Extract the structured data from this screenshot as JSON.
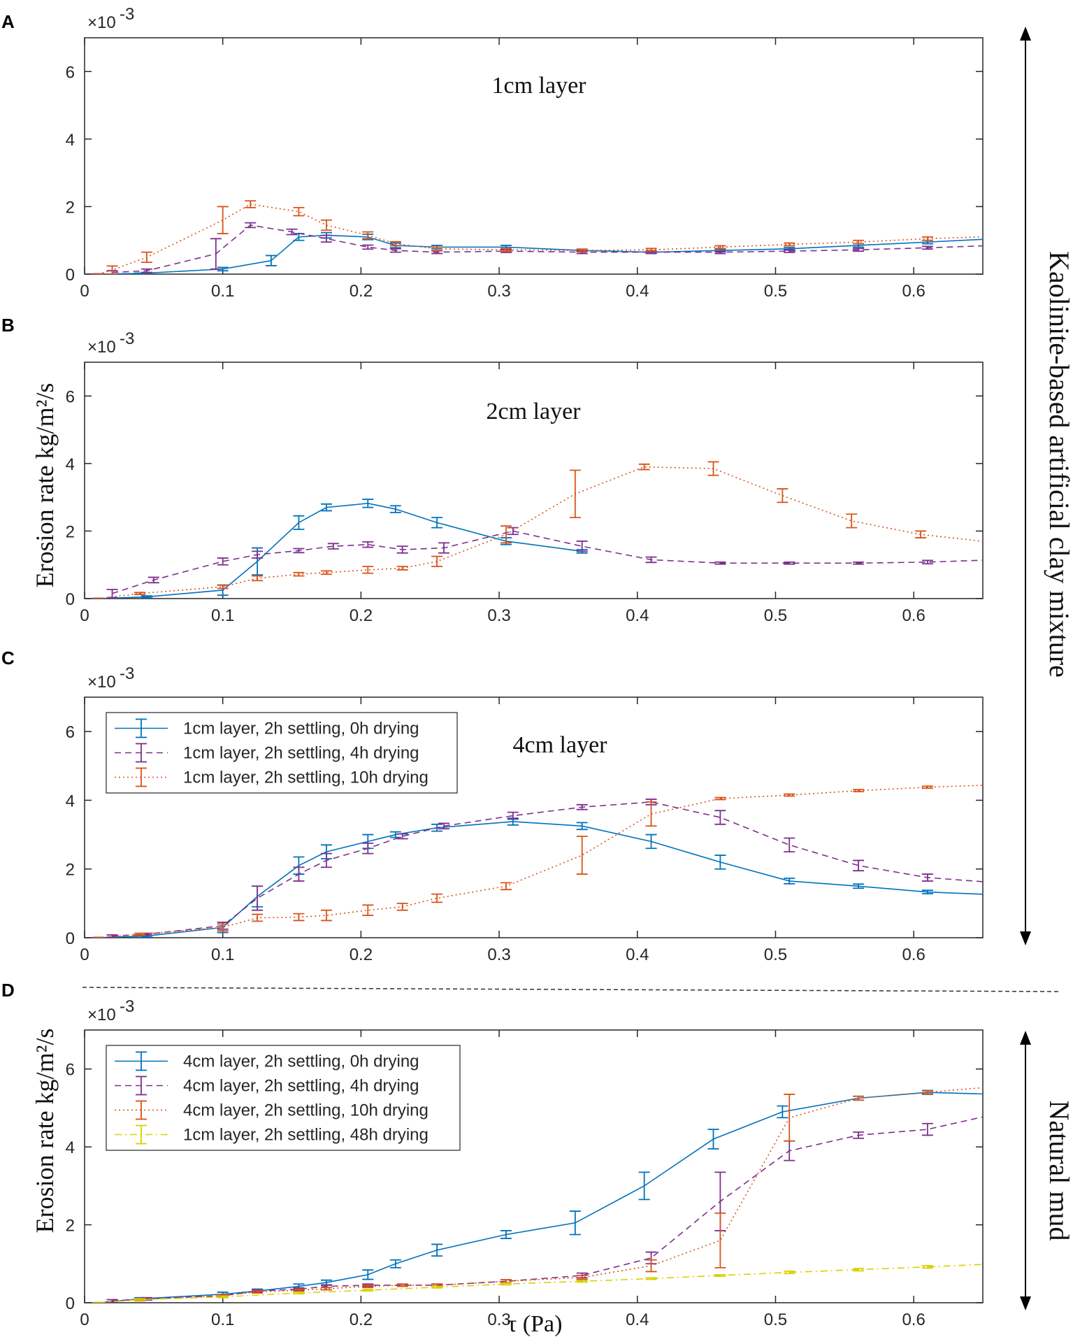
{
  "figure": {
    "right_label_top": "Kaolinite-based artificial clay mixture",
    "right_label_bottom": "Natural mud",
    "ylabel": "Erosion rate kg/m²/s",
    "xlabel": "τ (Pa)",
    "exponent_label": "×10",
    "exponent_power": "-3"
  },
  "colors": {
    "blue": "#0072BD",
    "purple": "#7E2F8E",
    "orange": "#D95319",
    "yellow": "#EDB120",
    "yellow_line": "#D9D100"
  },
  "chart_data": [
    {
      "panel": "A",
      "type": "line",
      "title": "1cm layer",
      "xlim": [
        0,
        0.65
      ],
      "ylim": [
        0,
        7
      ],
      "xticks": [
        "0",
        "0.1",
        "0.2",
        "0.3",
        "0.4",
        "0.5",
        "0.6"
      ],
      "yticks": [
        "0",
        "2",
        "4",
        "6"
      ],
      "ylabel": "",
      "xlabel": "",
      "legend": [],
      "series": [
        {
          "name": "1cm layer, 2h settling, 0h drying",
          "color": "#0072BD",
          "dash": "solid",
          "x": [
            0.01,
            0.04,
            0.1,
            0.135,
            0.155,
            0.175,
            0.205,
            0.225,
            0.255,
            0.305,
            0.36,
            0.41,
            0.46,
            0.51,
            0.56,
            0.61,
            0.66
          ],
          "y": [
            0.0,
            0.02,
            0.15,
            0.4,
            1.1,
            1.15,
            1.1,
            0.85,
            0.8,
            0.8,
            0.7,
            0.65,
            0.7,
            0.75,
            0.85,
            0.95,
            1.05
          ],
          "err": [
            0.01,
            0.01,
            0.05,
            0.15,
            0.1,
            0.08,
            0.08,
            0.07,
            0.05,
            0.05,
            0.04,
            0.04,
            0.04,
            0.04,
            0.05,
            0.05,
            0.05
          ]
        },
        {
          "name": "1cm layer, 2h settling, 4h drying",
          "color": "#7E2F8E",
          "dash": "dashed",
          "x": [
            0.02,
            0.045,
            0.095,
            0.12,
            0.15,
            0.175,
            0.205,
            0.225,
            0.255,
            0.305,
            0.36,
            0.41,
            0.46,
            0.51,
            0.56,
            0.61,
            0.66
          ],
          "y": [
            0.05,
            0.1,
            0.6,
            1.45,
            1.25,
            1.05,
            0.8,
            0.7,
            0.65,
            0.68,
            0.65,
            0.65,
            0.65,
            0.68,
            0.72,
            0.78,
            0.85
          ],
          "err": [
            0.05,
            0.05,
            0.45,
            0.07,
            0.08,
            0.1,
            0.06,
            0.05,
            0.04,
            0.04,
            0.04,
            0.04,
            0.04,
            0.04,
            0.04,
            0.04,
            0.04
          ]
        },
        {
          "name": "1cm layer, 2h settling, 10h drying",
          "color": "#D95319",
          "dash": "dotted",
          "x": [
            0.01,
            0.02,
            0.045,
            0.1,
            0.12,
            0.155,
            0.175,
            0.205,
            0.225,
            0.255,
            0.305,
            0.36,
            0.41,
            0.46,
            0.51,
            0.56,
            0.61,
            0.66
          ],
          "y": [
            0.0,
            0.12,
            0.5,
            1.6,
            2.07,
            1.85,
            1.45,
            1.15,
            0.9,
            0.75,
            0.72,
            0.7,
            0.72,
            0.8,
            0.88,
            0.95,
            1.05,
            1.12
          ],
          "err": [
            0.01,
            0.12,
            0.15,
            0.4,
            0.1,
            0.12,
            0.15,
            0.1,
            0.06,
            0.05,
            0.04,
            0.04,
            0.04,
            0.04,
            0.04,
            0.05,
            0.05,
            0.05
          ]
        }
      ]
    },
    {
      "panel": "B",
      "type": "line",
      "title": "2cm layer",
      "xlim": [
        0,
        0.65
      ],
      "ylim": [
        0,
        7
      ],
      "xticks": [
        "0",
        "0.1",
        "0.2",
        "0.3",
        "0.4",
        "0.5",
        "0.6"
      ],
      "yticks": [
        "0",
        "2",
        "4",
        "6"
      ],
      "ylabel": "Erosion rate kg/m²/s",
      "xlabel": "",
      "legend": [],
      "series": [
        {
          "name": "1cm layer, 2h settling, 0h drying",
          "color": "#0072BD",
          "dash": "solid",
          "x": [
            0.01,
            0.045,
            0.1,
            0.125,
            0.155,
            0.175,
            0.205,
            0.225,
            0.255,
            0.305,
            0.36
          ],
          "y": [
            0.0,
            0.05,
            0.25,
            1.1,
            2.25,
            2.7,
            2.82,
            2.65,
            2.25,
            1.7,
            1.4
          ],
          "err": [
            0.01,
            0.03,
            0.15,
            0.4,
            0.2,
            0.1,
            0.12,
            0.1,
            0.15,
            0.1,
            0.05
          ]
        },
        {
          "name": "1cm layer, 2h settling, 4h drying",
          "color": "#7E2F8E",
          "dash": "dashed",
          "x": [
            0.02,
            0.05,
            0.1,
            0.125,
            0.155,
            0.18,
            0.205,
            0.23,
            0.26,
            0.31,
            0.36,
            0.41,
            0.46,
            0.51,
            0.56,
            0.61,
            0.66
          ],
          "y": [
            0.15,
            0.55,
            1.1,
            1.3,
            1.42,
            1.55,
            1.6,
            1.45,
            1.5,
            2.0,
            1.55,
            1.15,
            1.05,
            1.05,
            1.05,
            1.08,
            1.15
          ],
          "err": [
            0.12,
            0.08,
            0.1,
            0.1,
            0.06,
            0.08,
            0.08,
            0.1,
            0.15,
            0.1,
            0.15,
            0.08,
            0.03,
            0.03,
            0.03,
            0.05,
            0.05
          ]
        },
        {
          "name": "1cm layer, 2h settling, 10h drying",
          "color": "#D95319",
          "dash": "dotted",
          "x": [
            0.01,
            0.04,
            0.1,
            0.125,
            0.155,
            0.175,
            0.205,
            0.23,
            0.255,
            0.305,
            0.355,
            0.405,
            0.455,
            0.505,
            0.555,
            0.605,
            0.66
          ],
          "y": [
            0.0,
            0.15,
            0.35,
            0.6,
            0.72,
            0.77,
            0.85,
            0.9,
            1.1,
            1.9,
            3.1,
            3.9,
            3.85,
            3.05,
            2.3,
            1.9,
            1.65
          ],
          "err": [
            0.01,
            0.03,
            0.05,
            0.07,
            0.05,
            0.05,
            0.1,
            0.05,
            0.15,
            0.25,
            0.7,
            0.08,
            0.2,
            0.2,
            0.2,
            0.1,
            0.05
          ]
        }
      ]
    },
    {
      "panel": "C",
      "type": "line",
      "title": "4cm layer",
      "xlim": [
        0,
        0.65
      ],
      "ylim": [
        0,
        7
      ],
      "xticks": [
        "0",
        "0.1",
        "0.2",
        "0.3",
        "0.4",
        "0.5",
        "0.6"
      ],
      "yticks": [
        "0",
        "2",
        "4",
        "6"
      ],
      "ylabel": "",
      "xlabel": "",
      "legend": [
        "1cm layer, 2h settling, 0h drying",
        "1cm layer, 2h settling, 4h drying",
        "1cm layer, 2h settling, 10h drying"
      ],
      "series": [
        {
          "name": "1cm layer, 2h settling, 0h drying",
          "color": "#0072BD",
          "dash": "solid",
          "x": [
            0.01,
            0.045,
            0.1,
            0.125,
            0.155,
            0.175,
            0.205,
            0.225,
            0.255,
            0.31,
            0.36,
            0.41,
            0.46,
            0.51,
            0.56,
            0.61,
            0.66
          ],
          "y": [
            0.0,
            0.05,
            0.3,
            1.2,
            2.1,
            2.5,
            2.8,
            3.0,
            3.2,
            3.38,
            3.25,
            2.8,
            2.2,
            1.65,
            1.5,
            1.33,
            1.25
          ],
          "err": [
            0.01,
            0.03,
            0.15,
            0.3,
            0.25,
            0.2,
            0.2,
            0.08,
            0.1,
            0.1,
            0.1,
            0.2,
            0.2,
            0.08,
            0.06,
            0.05,
            0.05
          ]
        },
        {
          "name": "1cm layer, 2h settling, 4h drying",
          "color": "#7E2F8E",
          "dash": "dashed",
          "x": [
            0.02,
            0.045,
            0.1,
            0.125,
            0.155,
            0.175,
            0.205,
            0.23,
            0.26,
            0.31,
            0.36,
            0.41,
            0.46,
            0.51,
            0.56,
            0.61,
            0.66
          ],
          "y": [
            0.05,
            0.1,
            0.35,
            1.15,
            1.85,
            2.25,
            2.6,
            2.95,
            3.25,
            3.55,
            3.8,
            3.95,
            3.5,
            2.7,
            2.1,
            1.75,
            1.6
          ],
          "err": [
            0.03,
            0.03,
            0.1,
            0.35,
            0.2,
            0.2,
            0.15,
            0.07,
            0.08,
            0.1,
            0.07,
            0.08,
            0.2,
            0.2,
            0.15,
            0.1,
            0.05
          ]
        },
        {
          "name": "1cm layer, 2h settling, 10h drying",
          "color": "#D95319",
          "dash": "dotted",
          "x": [
            0.01,
            0.04,
            0.1,
            0.125,
            0.155,
            0.175,
            0.205,
            0.23,
            0.255,
            0.305,
            0.36,
            0.41,
            0.46,
            0.51,
            0.56,
            0.61,
            0.66
          ],
          "y": [
            0.0,
            0.1,
            0.3,
            0.58,
            0.6,
            0.65,
            0.8,
            0.9,
            1.15,
            1.5,
            2.4,
            3.6,
            4.05,
            4.15,
            4.28,
            4.38,
            4.45
          ],
          "err": [
            0.01,
            0.03,
            0.1,
            0.1,
            0.1,
            0.15,
            0.15,
            0.1,
            0.12,
            0.1,
            0.55,
            0.35,
            0.03,
            0.03,
            0.03,
            0.03,
            0.03
          ]
        }
      ]
    },
    {
      "panel": "D",
      "type": "line",
      "title": "",
      "xlim": [
        0,
        0.65
      ],
      "ylim": [
        0,
        7
      ],
      "xticks": [
        "0",
        "0.1",
        "0.2",
        "0.3",
        "0.4",
        "0.5",
        "0.6"
      ],
      "yticks": [
        "0",
        "2",
        "4",
        "6"
      ],
      "ylabel": "Erosion rate kg/m²/s",
      "xlabel": "τ (Pa)",
      "legend": [
        "4cm layer, 2h settling, 0h drying",
        "4cm layer, 2h settling, 4h drying",
        "4cm layer, 2h settling, 10h drying",
        "1cm layer, 2h settling, 48h drying"
      ],
      "series": [
        {
          "name": "4cm layer, 2h settling, 0h drying",
          "color": "#0072BD",
          "dash": "solid",
          "x": [
            0.01,
            0.04,
            0.1,
            0.125,
            0.155,
            0.175,
            0.205,
            0.225,
            0.255,
            0.305,
            0.355,
            0.405,
            0.455,
            0.505,
            0.56,
            0.61,
            0.66
          ],
          "y": [
            0.0,
            0.1,
            0.22,
            0.3,
            0.42,
            0.52,
            0.72,
            1.0,
            1.35,
            1.75,
            2.05,
            3.0,
            4.2,
            4.9,
            5.25,
            5.4,
            5.35
          ],
          "err": [
            0.01,
            0.03,
            0.05,
            0.05,
            0.06,
            0.06,
            0.12,
            0.1,
            0.15,
            0.1,
            0.3,
            0.35,
            0.25,
            0.15,
            0.05,
            0.05,
            0.15
          ]
        },
        {
          "name": "4cm layer, 2h settling, 4h drying",
          "color": "#7E2F8E",
          "dash": "dashed",
          "x": [
            0.02,
            0.045,
            0.1,
            0.125,
            0.155,
            0.175,
            0.205,
            0.23,
            0.255,
            0.305,
            0.36,
            0.41,
            0.46,
            0.51,
            0.56,
            0.61,
            0.66
          ],
          "y": [
            0.05,
            0.1,
            0.18,
            0.3,
            0.35,
            0.42,
            0.45,
            0.45,
            0.45,
            0.55,
            0.7,
            1.15,
            2.6,
            3.9,
            4.3,
            4.45,
            4.85
          ],
          "err": [
            0.03,
            0.03,
            0.03,
            0.03,
            0.03,
            0.03,
            0.03,
            0.03,
            0.03,
            0.04,
            0.06,
            0.15,
            0.75,
            0.25,
            0.08,
            0.15,
            0.35
          ]
        },
        {
          "name": "4cm layer, 2h settling, 10h drying",
          "color": "#D95319",
          "dash": "dotted",
          "x": [
            0.01,
            0.04,
            0.1,
            0.125,
            0.155,
            0.175,
            0.205,
            0.23,
            0.255,
            0.305,
            0.36,
            0.41,
            0.46,
            0.51,
            0.56,
            0.61,
            0.66
          ],
          "y": [
            0.0,
            0.08,
            0.18,
            0.28,
            0.32,
            0.36,
            0.42,
            0.45,
            0.45,
            0.55,
            0.65,
            0.95,
            1.6,
            4.75,
            5.25,
            5.4,
            5.55
          ],
          "err": [
            0.01,
            0.03,
            0.03,
            0.03,
            0.03,
            0.03,
            0.03,
            0.03,
            0.03,
            0.04,
            0.05,
            0.15,
            0.7,
            0.6,
            0.05,
            0.04,
            0.05
          ]
        },
        {
          "name": "1cm layer, 2h settling, 48h drying",
          "color": "#D9D100",
          "dash": "dashdot",
          "x": [
            0.01,
            0.04,
            0.1,
            0.155,
            0.205,
            0.255,
            0.305,
            0.36,
            0.41,
            0.46,
            0.51,
            0.56,
            0.61,
            0.66
          ],
          "y": [
            0.0,
            0.08,
            0.15,
            0.25,
            0.32,
            0.4,
            0.48,
            0.55,
            0.62,
            0.7,
            0.78,
            0.85,
            0.92,
            1.0
          ],
          "err": [
            0.01,
            0.02,
            0.02,
            0.02,
            0.02,
            0.02,
            0.02,
            0.02,
            0.02,
            0.02,
            0.03,
            0.03,
            0.03,
            0.03
          ]
        }
      ]
    }
  ]
}
